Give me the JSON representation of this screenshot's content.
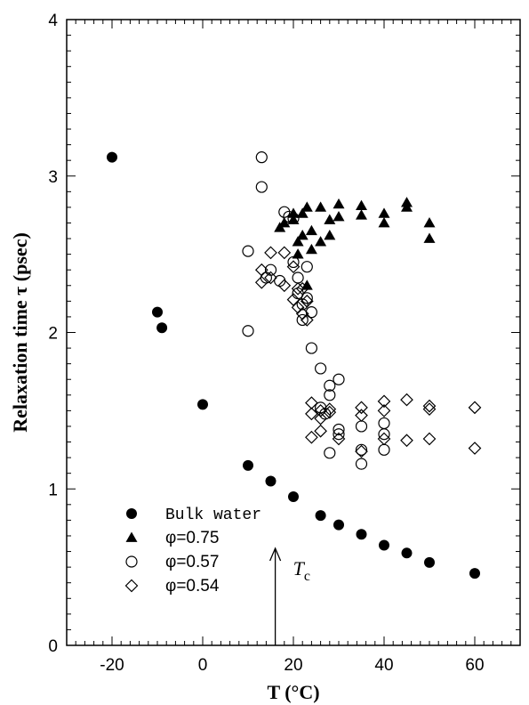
{
  "chart_data": {
    "type": "scatter",
    "title": "",
    "xlabel": "T (°C)",
    "ylabel": "Relaxation time τ (psec)",
    "xlim": [
      -30,
      70
    ],
    "ylim": [
      0,
      4
    ],
    "x_ticks": [
      "-20",
      "0",
      "20",
      "40",
      "60"
    ],
    "y_ticks": [
      "0",
      "1",
      "2",
      "3",
      "4"
    ],
    "grid": false,
    "legend_position": "bottom-left",
    "series": [
      {
        "name": "Bulk water",
        "marker": "filled-circle",
        "points": [
          [
            -20,
            3.12
          ],
          [
            -10,
            2.13
          ],
          [
            -9,
            2.03
          ],
          [
            0,
            1.54
          ],
          [
            10,
            1.15
          ],
          [
            15,
            1.05
          ],
          [
            20,
            0.95
          ],
          [
            26,
            0.83
          ],
          [
            30,
            0.77
          ],
          [
            35,
            0.71
          ],
          [
            40,
            0.64
          ],
          [
            45,
            0.59
          ],
          [
            50,
            0.53
          ],
          [
            60,
            0.46
          ]
        ]
      },
      {
        "name": "φ=0.75",
        "marker": "filled-triangle",
        "points": [
          [
            17,
            2.67
          ],
          [
            18,
            2.7
          ],
          [
            20,
            2.72
          ],
          [
            20,
            2.76
          ],
          [
            21,
            2.5
          ],
          [
            21,
            2.58
          ],
          [
            22,
            2.62
          ],
          [
            22,
            2.76
          ],
          [
            23,
            2.3
          ],
          [
            23,
            2.8
          ],
          [
            24,
            2.53
          ],
          [
            24,
            2.65
          ],
          [
            26,
            2.58
          ],
          [
            26,
            2.8
          ],
          [
            28,
            2.62
          ],
          [
            28,
            2.72
          ],
          [
            30,
            2.74
          ],
          [
            30,
            2.82
          ],
          [
            35,
            2.75
          ],
          [
            35,
            2.81
          ],
          [
            40,
            2.7
          ],
          [
            40,
            2.76
          ],
          [
            45,
            2.8
          ],
          [
            45,
            2.83
          ],
          [
            50,
            2.6
          ],
          [
            50,
            2.7
          ]
        ]
      },
      {
        "name": "φ=0.57",
        "marker": "open-circle",
        "points": [
          [
            10,
            2.52
          ],
          [
            10,
            2.01
          ],
          [
            13,
            3.12
          ],
          [
            13,
            2.93
          ],
          [
            14,
            2.35
          ],
          [
            15,
            2.4
          ],
          [
            17,
            2.33
          ],
          [
            18,
            2.77
          ],
          [
            19,
            2.74
          ],
          [
            20,
            2.45
          ],
          [
            20,
            2.73
          ],
          [
            21,
            2.35
          ],
          [
            21,
            2.25
          ],
          [
            22,
            2.18
          ],
          [
            22,
            2.08
          ],
          [
            23,
            2.42
          ],
          [
            23,
            2.22
          ],
          [
            24,
            2.13
          ],
          [
            24,
            1.9
          ],
          [
            26,
            1.77
          ],
          [
            26,
            1.52
          ],
          [
            27,
            1.48
          ],
          [
            28,
            1.66
          ],
          [
            28,
            1.6
          ],
          [
            28,
            1.23
          ],
          [
            30,
            1.7
          ],
          [
            30,
            1.38
          ],
          [
            30,
            1.35
          ],
          [
            35,
            1.25
          ],
          [
            35,
            1.16
          ],
          [
            35,
            1.4
          ],
          [
            40,
            1.42
          ],
          [
            40,
            1.35
          ],
          [
            40,
            1.25
          ]
        ]
      },
      {
        "name": "φ=0.54",
        "marker": "open-diamond",
        "points": [
          [
            13,
            2.32
          ],
          [
            13,
            2.4
          ],
          [
            15,
            2.51
          ],
          [
            15,
            2.35
          ],
          [
            18,
            2.51
          ],
          [
            18,
            2.3
          ],
          [
            20,
            2.42
          ],
          [
            20,
            2.21
          ],
          [
            21,
            2.28
          ],
          [
            21,
            2.16
          ],
          [
            22,
            2.28
          ],
          [
            22,
            2.12
          ],
          [
            23,
            2.2
          ],
          [
            23,
            2.08
          ],
          [
            24,
            1.55
          ],
          [
            24,
            1.48
          ],
          [
            24,
            1.33
          ],
          [
            26,
            1.5
          ],
          [
            26,
            1.45
          ],
          [
            26,
            1.37
          ],
          [
            28,
            1.51
          ],
          [
            28,
            1.49
          ],
          [
            30,
            1.32
          ],
          [
            35,
            1.52
          ],
          [
            35,
            1.47
          ],
          [
            35,
            1.24
          ],
          [
            40,
            1.56
          ],
          [
            40,
            1.5
          ],
          [
            40,
            1.32
          ],
          [
            45,
            1.57
          ],
          [
            45,
            1.31
          ],
          [
            50,
            1.53
          ],
          [
            50,
            1.51
          ],
          [
            50,
            1.32
          ],
          [
            60,
            1.52
          ],
          [
            60,
            1.26
          ]
        ]
      }
    ],
    "annotations": [
      {
        "text": "T",
        "subscript": "c",
        "x": 16,
        "arrow_from_y": 0,
        "arrow_to_y": 0.62
      }
    ]
  }
}
